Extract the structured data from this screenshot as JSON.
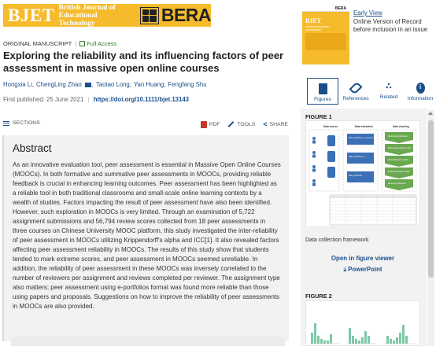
{
  "journal": {
    "name": "BJET",
    "subtitle_line1": "British Journal of",
    "subtitle_line2": "Educational Technology",
    "publisher": "BERA"
  },
  "article": {
    "type": "ORIGINAL MANUSCRIPT",
    "access": "Full Access",
    "title": "Exploring the reliability and its influencing factors of peer assessment in massive open online courses",
    "authors": [
      "Hongxia Li,",
      "ChengLing Zhao",
      "Taotao Long,",
      "Yan Huang,",
      "Fengfang Shu"
    ],
    "published_label": "First published:",
    "published_date": "25 June 2021",
    "doi": "https://doi.org/10.1111/bjet.13143"
  },
  "toolbar": {
    "sections": "SECTIONS",
    "pdf": "PDF",
    "tools": "TOOLS",
    "share": "SHARE"
  },
  "abstract": {
    "heading": "Abstract",
    "text": "As an innovative evaluation tool, peer assessment is essential in Massive Open Online Courses (MOOCs). In both formative and summative peer assessments in MOOCs, providing reliable feedback is crucial in enhancing learning outcomes. Peer assessment has been highlighted as a reliable tool in both traditional classrooms and small-scale online learning contexts by a wealth of studies. Factors impacting the result of peer assessment have also been identified. However, such exploration in MOOCs is very limited. Through an examination of 5,722 assignment submissions and 56,794 review scores collected from 18 peer assessments in three courses on Chinese University MOOC platform, this study investigated the inter-reliability of peer assessment in MOOCs utilizing Krippendorff's alpha and ICC[1]. It also revealed factors affecting peer assessment reliability in MOOCs. The results of this study show that students tended to mark extreme scores, and peer assessment in MOOCs seemed unreliable. In addition, the reliability of peer assessment in these MOOCs was inversely correlated to the number of reviewers per assignment and reviews completed per reviewer. The assignment type also matters; peer assessment using e-portfolios format was found more reliable than those using papers and proposals. Suggestions on how to improve the reliability of peer assessments in MOOCs are also provided."
  },
  "sidebar": {
    "cover": {
      "header": "BERA",
      "title": "BJET"
    },
    "early_view": "Early View",
    "early_view_desc": "Online Version of Record before inclusion in an issue",
    "tabs": [
      {
        "label": "Figures",
        "icon": "image-icon"
      },
      {
        "label": "References",
        "icon": "link-icon"
      },
      {
        "label": "Related",
        "icon": "network-icon"
      },
      {
        "label": "Information",
        "icon": "info-icon"
      }
    ],
    "figure1_label": "FIGURE 1",
    "figure1_caption": "Data collection framework",
    "open_viewer": "Open in figure viewer",
    "powerpoint": "PowerPoint",
    "figure2_label": "FIGURE 2",
    "figure1_diagram": {
      "col_headers": [
        "Data source",
        "Data extraction",
        "Data cleaning"
      ],
      "extraction_items": [
        "Data_collection_1_course_level",
        "Data_collection_2",
        "Data_structure"
      ],
      "cleaning_items": [
        "Eliminating invalid data",
        "Eliminating invalid test data",
        "Eliminating dummy data",
        "Eliminating duplicate data",
        "Eliminating data data"
      ]
    }
  },
  "colors": {
    "banner": "#f6bb2d",
    "link": "#1a4f8a",
    "panel": "#f2f2f2"
  }
}
